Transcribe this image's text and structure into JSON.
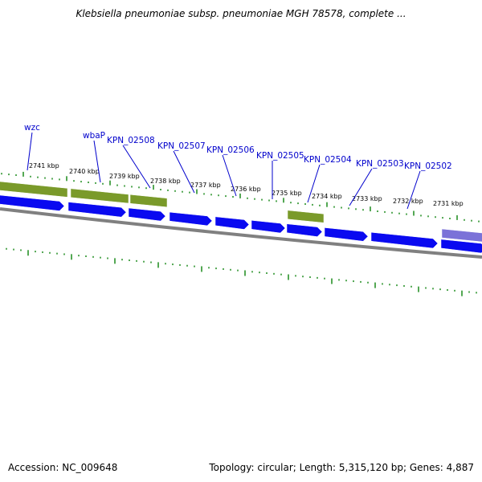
{
  "title": "Klebsiella pneumoniae subsp. pneumoniae MGH 78578, complete ...",
  "footer": {
    "accession": "Accession: NC_009648",
    "summary": "Topology: circular; Length: 5,315,120 bp; Genes: 4,887"
  },
  "colors": {
    "forward_gene": "#7a9a2a",
    "reverse_gene": "#0a0af0",
    "other_feature": "#7b72d8",
    "backbone": "#808080",
    "tick": "#1a8a1a",
    "label": "#0000cc"
  },
  "scale_labels": [
    "2741 kbp",
    "2740 kbp",
    "2739 kbp",
    "2738 kbp",
    "2737 kbp",
    "2736 kbp",
    "2735 kbp",
    "2734 kbp",
    "2733 kbp",
    "2732 kbp",
    "2731 kbp"
  ],
  "gene_labels": [
    "wzc",
    "wbaP",
    "KPN_02508",
    "KPN_02507",
    "KPN_02506",
    "KPN_02505",
    "KPN_02504",
    "KPN_02503",
    "KPN_02502"
  ]
}
